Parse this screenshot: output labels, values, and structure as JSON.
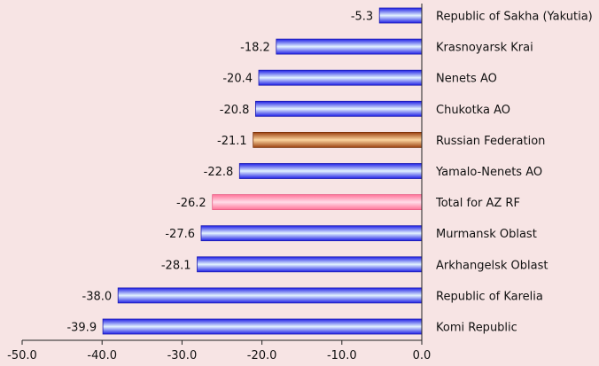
{
  "chart_data": {
    "type": "bar",
    "orientation": "horizontal",
    "title": "",
    "xlabel": "",
    "ylabel": "",
    "xlim": [
      -50,
      0
    ],
    "x_ticks": [
      -50,
      -40,
      -30,
      -20,
      -10,
      0
    ],
    "x_tick_labels": [
      "-50.0",
      "-40.0",
      "-30.0",
      "-20.0",
      "-10.0",
      "0.0"
    ],
    "grid": false,
    "legend": "none",
    "categories": [
      "Republic of Sakha (Yakutia)",
      "Krasnoyarsk Krai",
      "Nenets AO",
      "Chukotka AO",
      "Russian Federation",
      "Yamalo-Nenets AO",
      "Total for AZ RF",
      "Murmansk Oblast",
      "Arkhangelsk Oblast",
      "Republic of Karelia",
      "Komi Republic"
    ],
    "values": [
      -5.3,
      -18.2,
      -20.4,
      -20.8,
      -21.1,
      -22.8,
      -26.2,
      -27.6,
      -28.1,
      -38.0,
      -39.9
    ],
    "value_labels": [
      "-5.3",
      "-18.2",
      "-20.4",
      "-20.8",
      "-21.1",
      "-22.8",
      "-26.2",
      "-27.6",
      "-28.1",
      "-38.0",
      "-39.9"
    ],
    "bar_styles": [
      "blue",
      "blue",
      "blue",
      "blue",
      "brown",
      "blue",
      "pink",
      "blue",
      "blue",
      "blue",
      "blue"
    ]
  },
  "colors": {
    "background": "#f7e4e4",
    "blue_dark": "#1f1fe6",
    "blue_light": "#e2f2ff",
    "brown_dark": "#9c4212",
    "brown_light": "#fbd49e",
    "pink_dark": "#ff7398",
    "pink_light": "#ffdce8",
    "axis": "#222222"
  }
}
